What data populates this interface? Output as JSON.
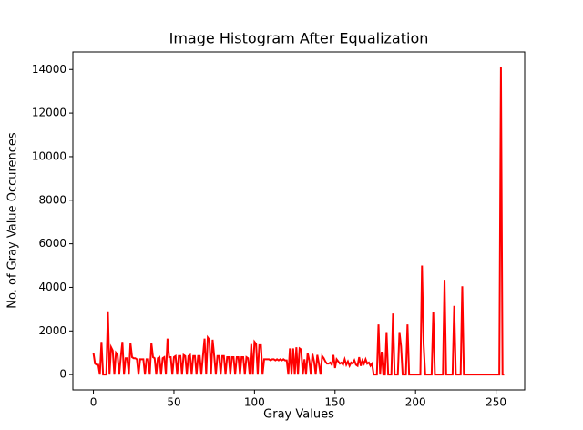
{
  "chart_data": {
    "type": "line",
    "title": "Image Histogram After Equalization",
    "x_label": "Gray Values",
    "y_label": "No. of Gray Value Occurences",
    "x": [
      0,
      1,
      2,
      3,
      4,
      5,
      6,
      7,
      8,
      9,
      10,
      11,
      12,
      13,
      14,
      15,
      16,
      17,
      18,
      19,
      20,
      21,
      22,
      23,
      24,
      25,
      26,
      27,
      28,
      29,
      30,
      31,
      32,
      33,
      34,
      35,
      36,
      37,
      38,
      39,
      40,
      41,
      42,
      43,
      44,
      45,
      46,
      47,
      48,
      49,
      50,
      51,
      52,
      53,
      54,
      55,
      56,
      57,
      58,
      59,
      60,
      61,
      62,
      63,
      64,
      65,
      66,
      67,
      68,
      69,
      70,
      71,
      72,
      73,
      74,
      75,
      76,
      77,
      78,
      79,
      80,
      81,
      82,
      83,
      84,
      85,
      86,
      87,
      88,
      89,
      90,
      91,
      92,
      93,
      94,
      95,
      96,
      97,
      98,
      99,
      100,
      101,
      102,
      103,
      104,
      105,
      106,
      107,
      108,
      109,
      110,
      111,
      112,
      113,
      114,
      115,
      116,
      117,
      118,
      119,
      120,
      121,
      122,
      123,
      124,
      125,
      126,
      127,
      128,
      129,
      130,
      131,
      132,
      133,
      134,
      135,
      136,
      137,
      138,
      139,
      140,
      141,
      142,
      143,
      144,
      145,
      146,
      147,
      148,
      149,
      150,
      151,
      152,
      153,
      154,
      155,
      156,
      157,
      158,
      159,
      160,
      161,
      162,
      163,
      164,
      165,
      166,
      167,
      168,
      169,
      170,
      171,
      172,
      173,
      174,
      175,
      176,
      177,
      178,
      179,
      180,
      181,
      182,
      183,
      184,
      185,
      186,
      187,
      188,
      189,
      190,
      191,
      192,
      193,
      194,
      195,
      196,
      197,
      198,
      199,
      200,
      201,
      202,
      203,
      204,
      205,
      206,
      207,
      208,
      209,
      210,
      211,
      212,
      213,
      214,
      215,
      216,
      217,
      218,
      219,
      220,
      221,
      222,
      223,
      224,
      225,
      226,
      227,
      228,
      229,
      230,
      231,
      232,
      233,
      234,
      235,
      236,
      237,
      238,
      239,
      240,
      241,
      242,
      243,
      244,
      245,
      246,
      247,
      248,
      249,
      250,
      251,
      252,
      253,
      254,
      255
    ],
    "series": [
      {
        "color": "#ff0000",
        "values": [
          1000,
          500,
          450,
          450,
          0,
          1500,
          0,
          0,
          0,
          2900,
          0,
          1250,
          1100,
          0,
          1000,
          900,
          0,
          800,
          1500,
          0,
          750,
          750,
          0,
          1450,
          800,
          750,
          750,
          700,
          0,
          700,
          700,
          700,
          0,
          700,
          700,
          0,
          1450,
          800,
          750,
          0,
          750,
          800,
          0,
          750,
          800,
          0,
          1650,
          800,
          800,
          0,
          800,
          850,
          0,
          850,
          850,
          0,
          900,
          850,
          0,
          850,
          900,
          0,
          850,
          850,
          0,
          850,
          850,
          0,
          850,
          1650,
          0,
          1700,
          1600,
          0,
          1600,
          850,
          0,
          850,
          850,
          0,
          850,
          850,
          0,
          800,
          800,
          0,
          800,
          800,
          0,
          800,
          800,
          0,
          800,
          800,
          0,
          800,
          750,
          0,
          1400,
          0,
          1500,
          1400,
          0,
          1350,
          1350,
          0,
          700,
          700,
          700,
          700,
          650,
          700,
          700,
          650,
          700,
          650,
          700,
          650,
          700,
          650,
          650,
          0,
          1200,
          0,
          1200,
          0,
          1250,
          0,
          1200,
          1150,
          0,
          700,
          0,
          1000,
          650,
          0,
          950,
          600,
          0,
          900,
          500,
          0,
          850,
          750,
          600,
          500,
          500,
          550,
          450,
          900,
          300,
          700,
          600,
          500,
          550,
          450,
          700,
          450,
          600,
          400,
          550,
          500,
          650,
          450,
          400,
          800,
          400,
          650,
          500,
          700,
          500,
          550,
          400,
          500,
          0,
          0,
          0,
          2300,
          0,
          1050,
          0,
          0,
          1950,
          0,
          0,
          0,
          2800,
          0,
          0,
          0,
          1950,
          1300,
          0,
          0,
          0,
          2300,
          0,
          0,
          0,
          0,
          0,
          0,
          0,
          0,
          5000,
          1400,
          0,
          0,
          0,
          0,
          0,
          2850,
          0,
          0,
          0,
          0,
          0,
          0,
          4350,
          0,
          0,
          0,
          0,
          0,
          3150,
          0,
          0,
          0,
          0,
          4050,
          0,
          0,
          0,
          0,
          0,
          0,
          0,
          0,
          0,
          0,
          0,
          0,
          0,
          0,
          0,
          0,
          0,
          0,
          0,
          0,
          0,
          0,
          0,
          14100,
          0,
          0
        ]
      }
    ],
    "xlim": [
      -12.75,
      267.75
    ],
    "ylim": [
      -705,
      14805
    ],
    "xticks": [
      0,
      50,
      100,
      150,
      200,
      250
    ],
    "yticks": [
      0,
      2000,
      4000,
      6000,
      8000,
      10000,
      12000,
      14000
    ],
    "grid": false
  }
}
